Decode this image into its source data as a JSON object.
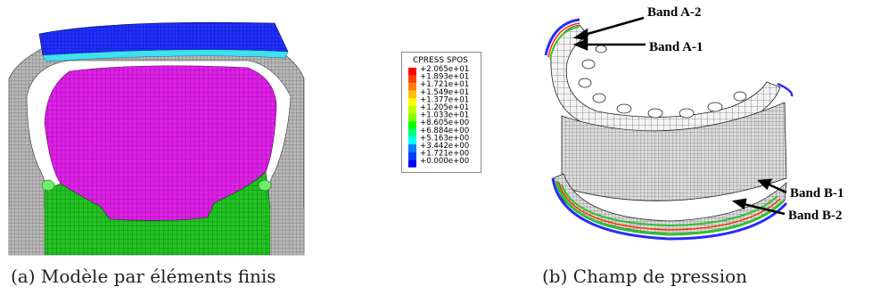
{
  "figure_a": {
    "caption": "(a) Modèle par éléments finis"
  },
  "figure_b": {
    "caption": "(b) Champ de pression",
    "legend": {
      "title": "CPRESS  SPOS",
      "entries": [
        {
          "value": "+2.065e+01",
          "color": "#ff0000"
        },
        {
          "value": "+1.893e+01",
          "color": "#ff4000"
        },
        {
          "value": "+1.721e+01",
          "color": "#ff8000"
        },
        {
          "value": "+1.549e+01",
          "color": "#ffbf00"
        },
        {
          "value": "+1.377e+01",
          "color": "#ffff00"
        },
        {
          "value": "+1.205e+01",
          "color": "#bfff00"
        },
        {
          "value": "+1.033e+01",
          "color": "#80ff00"
        },
        {
          "value": "+8.605e+00",
          "color": "#00ff00"
        },
        {
          "value": "+6.884e+00",
          "color": "#00ff80"
        },
        {
          "value": "+5.163e+00",
          "color": "#00ffff"
        },
        {
          "value": "+3.442e+00",
          "color": "#0080ff"
        },
        {
          "value": "+1.721e+00",
          "color": "#0040ff"
        },
        {
          "value": "+0.000e+00",
          "color": "#0000ff"
        }
      ]
    },
    "bands": {
      "a2": "Band A-2",
      "a1": "Band A-1",
      "b1": "Band B-1",
      "b2": "Band B-2"
    }
  }
}
